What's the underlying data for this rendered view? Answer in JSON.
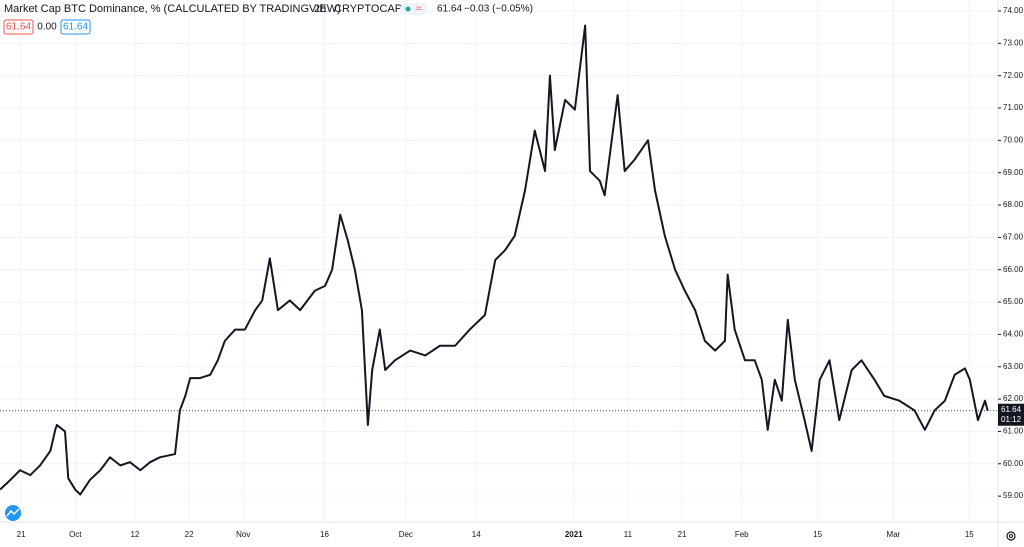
{
  "chart_data": {
    "type": "line",
    "title": "Market Cap BTC Dominance, % (CALCULATED BY TRADINGVIEW)",
    "interval": "2h",
    "exchange": "CRYPTOCAP",
    "header_price": "61.64",
    "header_change": "−0.03 (−0.05%)",
    "badges": [
      "61.64",
      "0.00",
      "61.64"
    ],
    "last_price": 61.64,
    "countdown": "01:12",
    "grid": true,
    "color": "#131722",
    "x": [
      -3.9,
      -2,
      -0.2,
      1.7,
      3.5,
      5.4,
      6.3,
      6.6,
      8.1,
      8.7,
      10,
      10.9,
      12.7,
      14.6,
      16.4,
      18.3,
      20.1,
      22,
      23.8,
      25.6,
      28.4,
      29.3,
      30.3,
      31.2,
      33,
      34.9,
      36.3,
      37.6,
      39.5,
      41.3,
      43.2,
      44.5,
      45.9,
      47.4,
      49.6,
      51.5,
      54.2,
      56.1,
      57.4,
      58.9,
      60.3,
      61.6,
      62.9,
      64,
      64.8,
      66.2,
      67.2,
      69,
      71.8,
      74.6,
      77.3,
      80.1,
      82.8,
      85.6,
      87.5,
      89.3,
      91.1,
      93,
      94.8,
      96.7,
      97.6,
      98.5,
      100.4,
      102.2,
      104.1,
      105,
      106.8,
      107.7,
      109,
      110.1,
      111.4,
      113.2,
      115.7,
      117,
      118.8,
      120.7,
      122.5,
      124.4,
      126.2,
      128.1,
      129.9,
      130.4,
      131.7,
      133.6,
      135.4,
      136.7,
      137.8,
      139.1,
      140.4,
      141.5,
      142.8,
      144.6,
      145.9,
      147.4,
      149.2,
      151,
      153.3,
      155.1,
      157.5,
      159.3,
      162.1,
      164.9,
      166.8,
      168.6,
      170.5,
      172.3,
      174.2,
      175.1,
      176.6,
      177.9,
      178.4
    ],
    "values": [
      59.2,
      59.5,
      59.8,
      59.65,
      59.95,
      60.4,
      61.05,
      61.2,
      61.0,
      59.55,
      59.2,
      59.05,
      59.5,
      59.8,
      60.2,
      59.95,
      60.05,
      59.8,
      60.05,
      60.2,
      60.3,
      61.65,
      62.1,
      62.65,
      62.65,
      62.75,
      63.2,
      63.8,
      64.15,
      64.15,
      64.75,
      65.05,
      66.35,
      64.75,
      65.05,
      64.75,
      65.35,
      65.5,
      66,
      67.7,
      66.9,
      66,
      64.75,
      61.2,
      62.9,
      64.15,
      62.9,
      63.2,
      63.5,
      63.35,
      63.65,
      63.65,
      64.15,
      64.6,
      66.3,
      66.6,
      67.05,
      68.45,
      70.3,
      69.05,
      72,
      69.7,
      71.25,
      70.95,
      73.55,
      69.05,
      68.75,
      68.3,
      70,
      71.4,
      69.05,
      69.4,
      70,
      68.45,
      67.05,
      66,
      65.35,
      64.75,
      63.8,
      63.5,
      63.8,
      65.85,
      64.15,
      63.2,
      63.2,
      62.6,
      61.05,
      62.6,
      61.95,
      64.45,
      62.6,
      61.35,
      60.4,
      62.6,
      63.2,
      61.35,
      62.9,
      63.2,
      62.6,
      62.1,
      61.95,
      61.65,
      61.05,
      61.65,
      61.95,
      62.75,
      62.95,
      62.6,
      61.35,
      61.95,
      61.64
    ],
    "xlim": [
      -3.9,
      180.3
    ],
    "ylim": [
      58.2,
      74.34
    ],
    "xticks": [
      {
        "value": 0,
        "label": "21"
      },
      {
        "value": 10,
        "label": "Oct"
      },
      {
        "value": 21,
        "label": "12"
      },
      {
        "value": 31,
        "label": "22"
      },
      {
        "value": 41,
        "label": "Nov"
      },
      {
        "value": 56,
        "label": "16"
      },
      {
        "value": 71,
        "label": "Dec"
      },
      {
        "value": 84,
        "label": "14"
      },
      {
        "value": 102,
        "label": "2021"
      },
      {
        "value": 112,
        "label": "11"
      },
      {
        "value": 122,
        "label": "21"
      },
      {
        "value": 133,
        "label": "Feb"
      },
      {
        "value": 147,
        "label": "15"
      },
      {
        "value": 161,
        "label": "Mar"
      },
      {
        "value": 175,
        "label": "15"
      }
    ],
    "yticks": [
      {
        "value": 59,
        "label": "59.00"
      },
      {
        "value": 60,
        "label": "60.00"
      },
      {
        "value": 61,
        "label": "61.00"
      },
      {
        "value": 62,
        "label": "62.00"
      },
      {
        "value": 63,
        "label": "63.00"
      },
      {
        "value": 64,
        "label": "64.00"
      },
      {
        "value": 65,
        "label": "65.00"
      },
      {
        "value": 66,
        "label": "66.00"
      },
      {
        "value": 67,
        "label": "67.00"
      },
      {
        "value": 68,
        "label": "68.00"
      },
      {
        "value": 69,
        "label": "69.00"
      },
      {
        "value": 70,
        "label": "70.00"
      },
      {
        "value": 71,
        "label": "71.00"
      },
      {
        "value": 72,
        "label": "72.00"
      },
      {
        "value": 73,
        "label": "73.00"
      },
      {
        "value": 74,
        "label": "74.00"
      }
    ]
  }
}
